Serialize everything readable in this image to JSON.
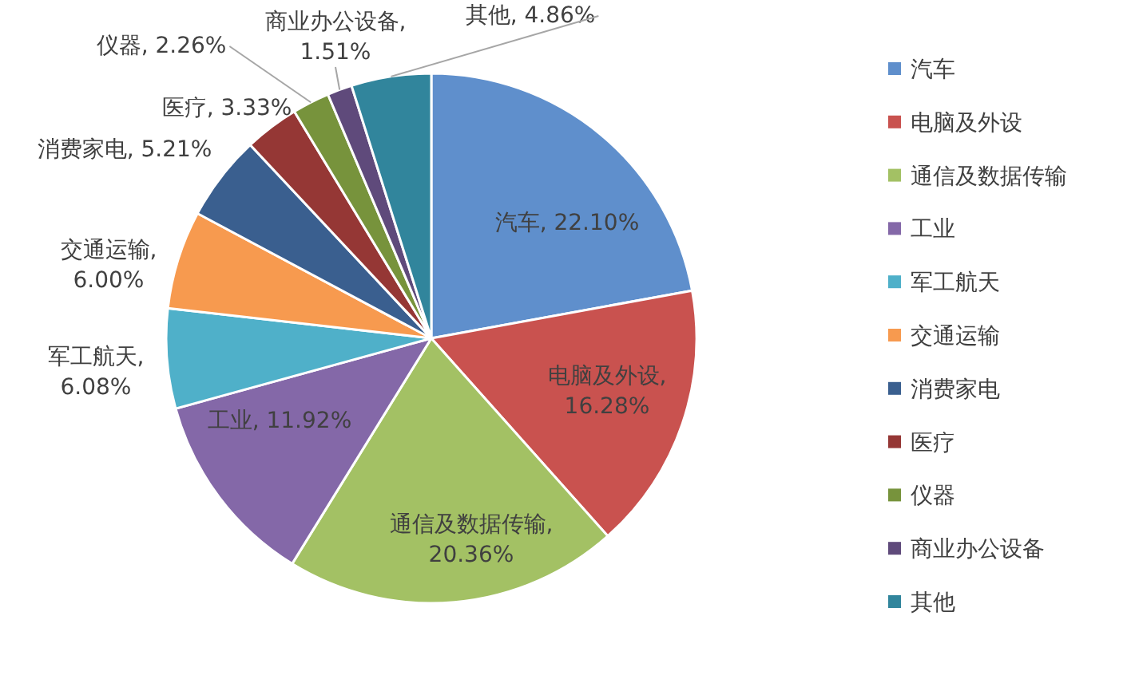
{
  "chart_data": {
    "type": "pie",
    "categories": [
      "汽车",
      "电脑及外设",
      "通信及数据传输",
      "工业",
      "军工航天",
      "交通运输",
      "消费家电",
      "医疗",
      "仪器",
      "商业办公设备",
      "其他"
    ],
    "values": [
      22.1,
      16.28,
      20.36,
      11.92,
      6.08,
      6.0,
      5.21,
      3.33,
      2.26,
      1.51,
      4.86
    ],
    "value_labels": [
      "汽车, 22.10%",
      "电脑及外设, 16.28%",
      "通信及数据传输, 20.36%",
      "工业, 11.92%",
      "军工航天, 6.08%",
      "交通运输, 6.00%",
      "消费家电, 5.21%",
      "医疗, 3.33%",
      "仪器, 2.26%",
      "商业办公设备, 1.51%",
      "其他, 4.86%"
    ],
    "colors": [
      "#5f8fcc",
      "#c9524f",
      "#a3c164",
      "#8468a8",
      "#4fb0c9",
      "#f79a4f",
      "#3a5f8f",
      "#953735",
      "#77933c",
      "#5f4a7b",
      "#31859c"
    ],
    "legend": "right"
  }
}
